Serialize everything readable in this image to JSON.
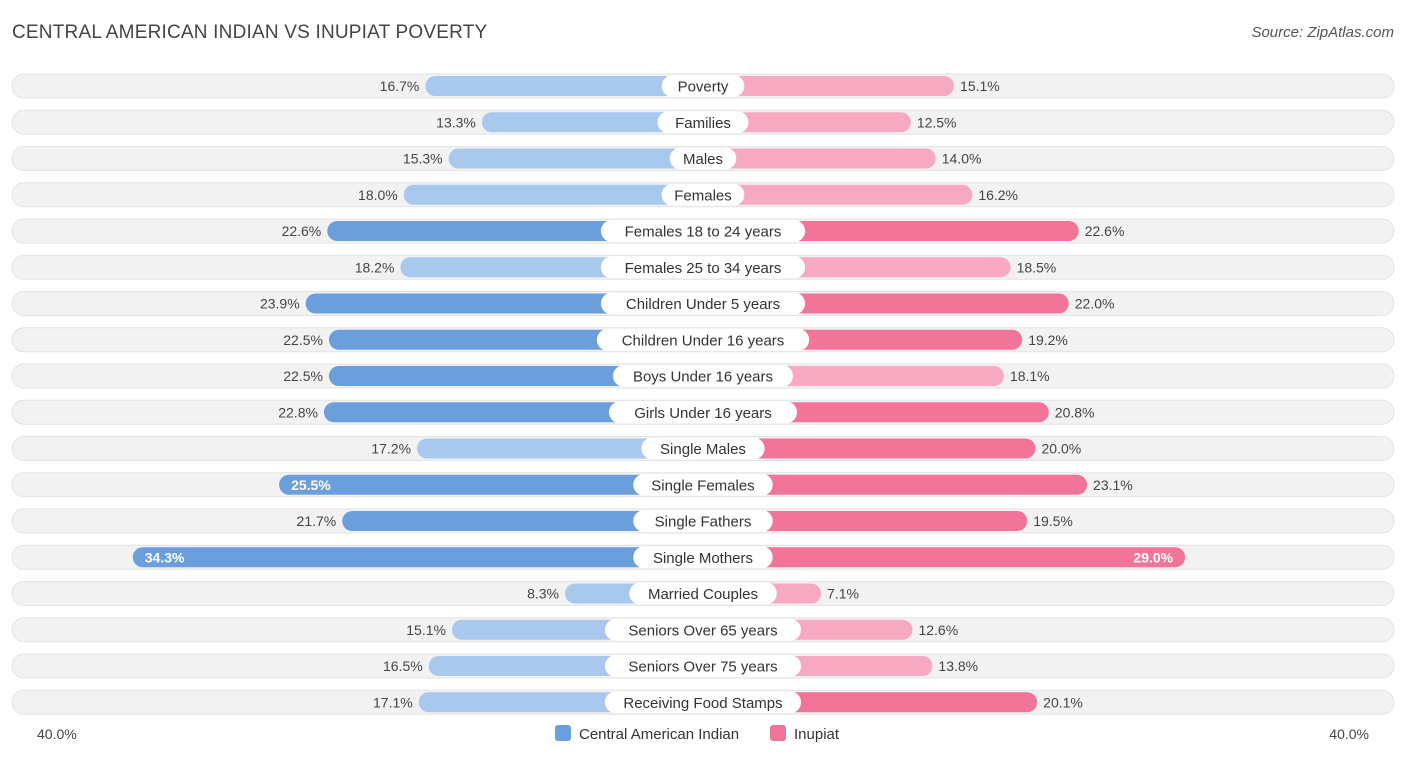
{
  "header": {
    "title": "CENTRAL AMERICAN INDIAN VS INUPIAT POVERTY",
    "source": "Source: ZipAtlas.com"
  },
  "colors": {
    "left_series": "#6a9fdc",
    "left_series_light": "#a9c8ee",
    "right_series": "#f27499",
    "right_series_light": "#f7a9c1",
    "row_background": "#f2f2f2"
  },
  "chart_data": {
    "type": "bar",
    "orientation": "diverging-horizontal",
    "title": "CENTRAL AMERICAN INDIAN VS INUPIAT POVERTY",
    "categories": [
      "Poverty",
      "Families",
      "Males",
      "Females",
      "Females 18 to 24 years",
      "Females 25 to 34 years",
      "Children Under 5 years",
      "Children Under 16 years",
      "Boys Under 16 years",
      "Girls Under 16 years",
      "Single Males",
      "Single Females",
      "Single Fathers",
      "Single Mothers",
      "Married Couples",
      "Seniors Over 65 years",
      "Seniors Over 75 years",
      "Receiving Food Stamps"
    ],
    "series": [
      {
        "name": "Central American Indian",
        "side": "left",
        "values": [
          16.7,
          13.3,
          15.3,
          18.0,
          22.6,
          18.2,
          23.9,
          22.5,
          22.5,
          22.8,
          17.2,
          25.5,
          21.7,
          34.3,
          8.3,
          15.1,
          16.5,
          17.1
        ],
        "labels": [
          "16.7%",
          "13.3%",
          "15.3%",
          "18.0%",
          "22.6%",
          "18.2%",
          "23.9%",
          "22.5%",
          "22.5%",
          "22.8%",
          "17.2%",
          "25.5%",
          "21.7%",
          "34.3%",
          "8.3%",
          "15.1%",
          "16.5%",
          "17.1%"
        ]
      },
      {
        "name": "Inupiat",
        "side": "right",
        "values": [
          15.1,
          12.5,
          14.0,
          16.2,
          22.6,
          18.5,
          22.0,
          19.2,
          18.1,
          20.8,
          20.0,
          23.1,
          19.5,
          29.0,
          7.1,
          12.6,
          13.8,
          20.1
        ],
        "labels": [
          "15.1%",
          "12.5%",
          "14.0%",
          "16.2%",
          "22.6%",
          "18.5%",
          "22.0%",
          "19.2%",
          "18.1%",
          "20.8%",
          "20.0%",
          "23.1%",
          "19.5%",
          "29.0%",
          "7.1%",
          "12.6%",
          "13.8%",
          "20.1%"
        ]
      }
    ],
    "axis": {
      "min_label": "40.0%",
      "max_label": "40.0%",
      "range": [
        0,
        40
      ]
    },
    "legend": {
      "placement": "bottom-center"
    }
  }
}
